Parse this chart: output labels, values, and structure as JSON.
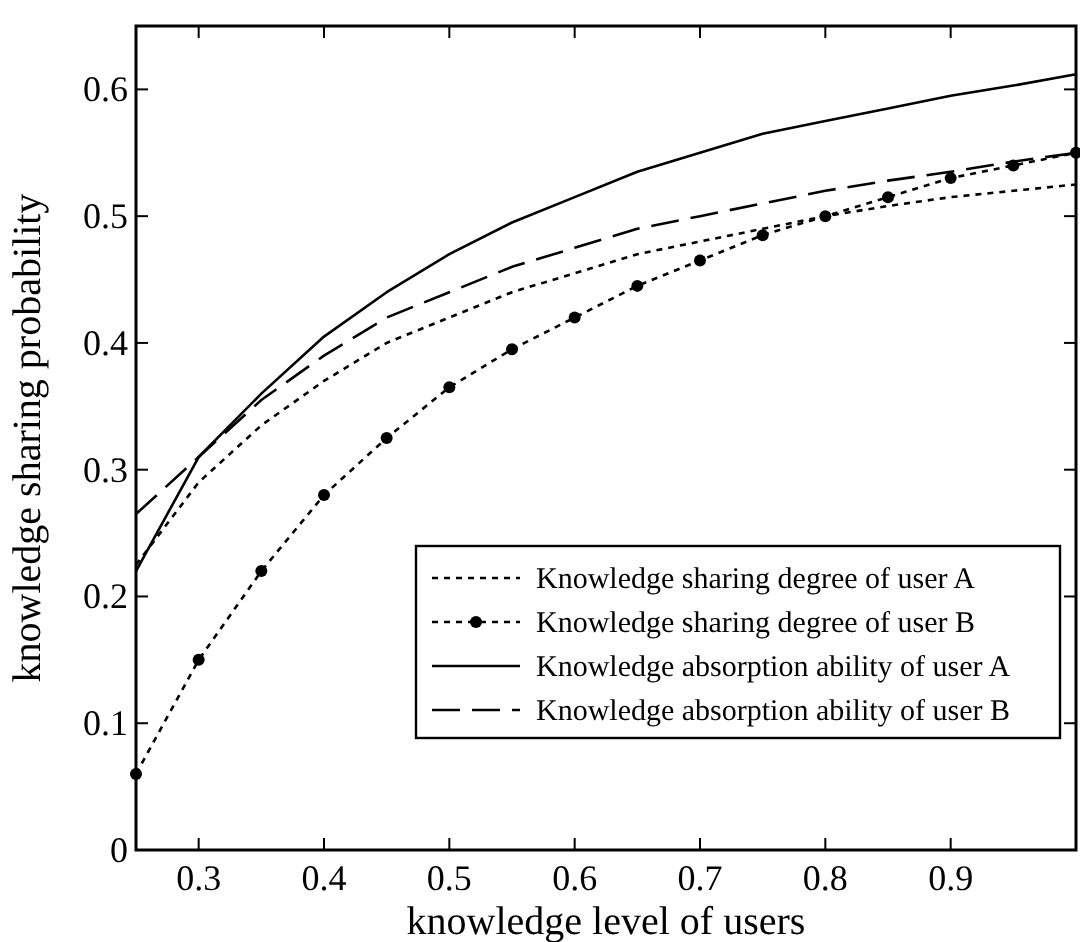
{
  "chart_data": {
    "type": "line",
    "xlabel": "knowledge level of users",
    "ylabel": "knowledge sharing probability",
    "x": [
      0.25,
      0.3,
      0.35,
      0.4,
      0.45,
      0.5,
      0.55,
      0.6,
      0.65,
      0.7,
      0.75,
      0.8,
      0.85,
      0.9,
      0.95,
      1.0
    ],
    "series": [
      {
        "name": "Knowledge sharing degree of user A",
        "color": "#000000",
        "line_style": "dotted",
        "marker": "none",
        "values": [
          0.225,
          0.29,
          0.335,
          0.37,
          0.4,
          0.42,
          0.44,
          0.455,
          0.47,
          0.48,
          0.49,
          0.5,
          0.508,
          0.515,
          0.52,
          0.525
        ]
      },
      {
        "name": "Knowledge sharing degree of user B",
        "color": "#000000",
        "line_style": "dotted",
        "marker": "circle",
        "values": [
          0.06,
          0.15,
          0.22,
          0.28,
          0.325,
          0.365,
          0.395,
          0.42,
          0.445,
          0.465,
          0.485,
          0.5,
          0.515,
          0.53,
          0.54,
          0.55
        ]
      },
      {
        "name": "Knowledge absorption ability of user A",
        "color": "#000000",
        "line_style": "solid",
        "marker": "none",
        "values": [
          0.22,
          0.31,
          0.36,
          0.405,
          0.44,
          0.47,
          0.495,
          0.515,
          0.535,
          0.55,
          0.565,
          0.575,
          0.585,
          0.595,
          0.603,
          0.612
        ]
      },
      {
        "name": "Knowledge absorption ability of user B",
        "color": "#000000",
        "line_style": "dashed",
        "marker": "none",
        "values": [
          0.265,
          0.31,
          0.355,
          0.39,
          0.42,
          0.44,
          0.46,
          0.475,
          0.49,
          0.5,
          0.51,
          0.52,
          0.528,
          0.535,
          0.543,
          0.55
        ]
      }
    ],
    "xlim": [
      0.25,
      1.0
    ],
    "xticks": [
      0.3,
      0.4,
      0.5,
      0.6,
      0.7,
      0.8,
      0.9
    ],
    "ylim": [
      0,
      0.65
    ],
    "yticks": [
      0,
      0.1,
      0.2,
      0.3,
      0.4,
      0.5,
      0.6
    ],
    "grid": false,
    "legend": "bottom right"
  }
}
